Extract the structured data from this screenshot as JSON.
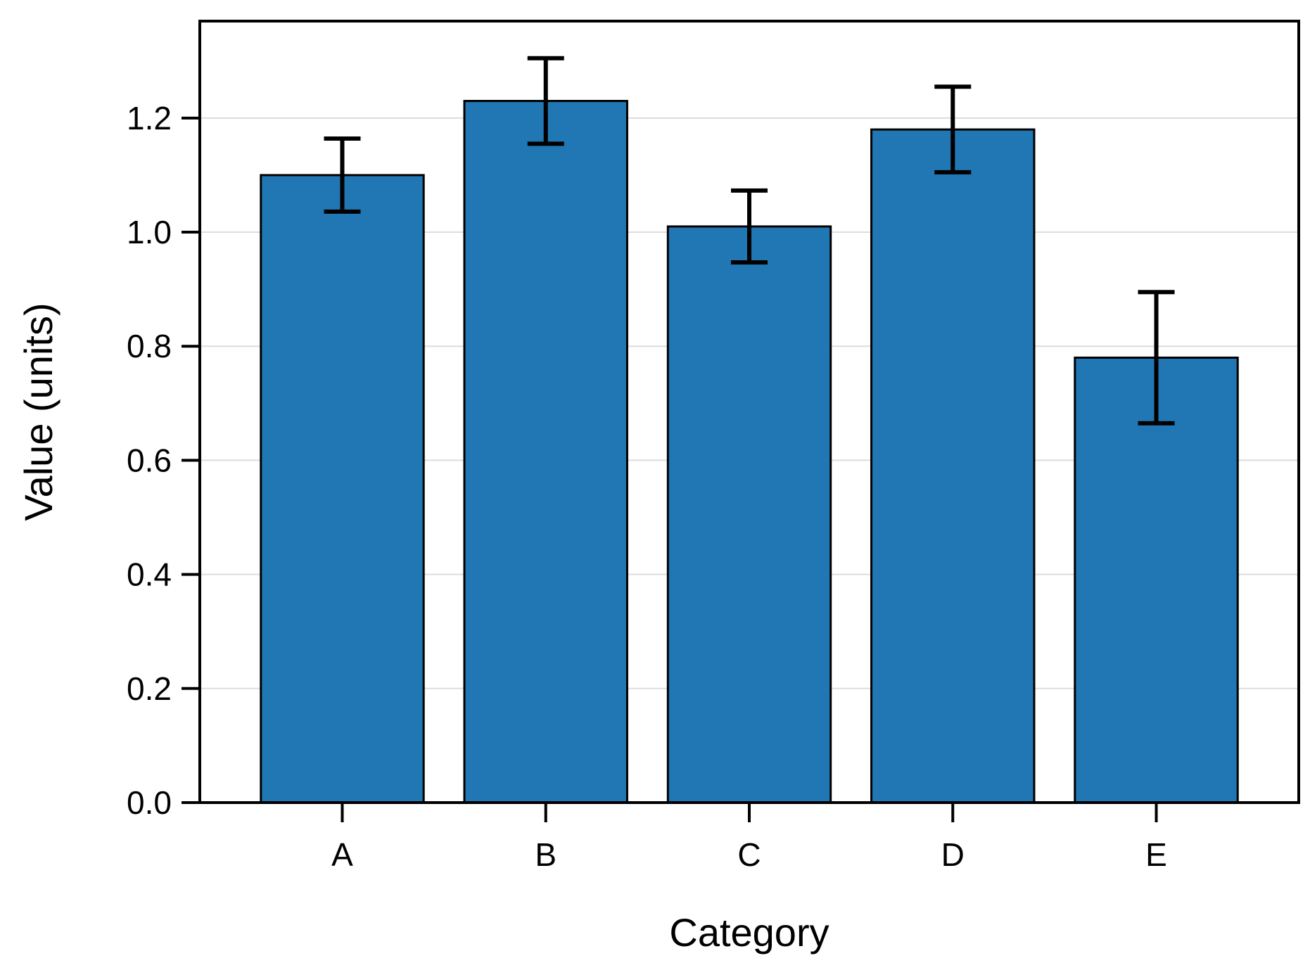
{
  "chart_data": {
    "type": "bar",
    "title": "",
    "xlabel": "Category",
    "ylabel": "Value (units)",
    "categories": [
      "A",
      "B",
      "C",
      "D",
      "E"
    ],
    "values": [
      1.1,
      1.23,
      1.01,
      1.18,
      0.78
    ],
    "errors": [
      0.064,
      0.075,
      0.063,
      0.075,
      0.115
    ],
    "ylim": [
      0,
      1.37
    ],
    "yticks": [
      "0.0",
      "0.2",
      "0.4",
      "0.6",
      "0.8",
      "1.0",
      "1.2"
    ],
    "ytick_values": [
      0,
      0.2,
      0.4,
      0.6,
      0.8,
      1.0,
      1.2
    ],
    "grid": "horizontal",
    "legend": "none",
    "bar_color": "#2077b4",
    "edge_color": "#000000",
    "error_color": "#000000",
    "grid_color": "#dddddd"
  }
}
